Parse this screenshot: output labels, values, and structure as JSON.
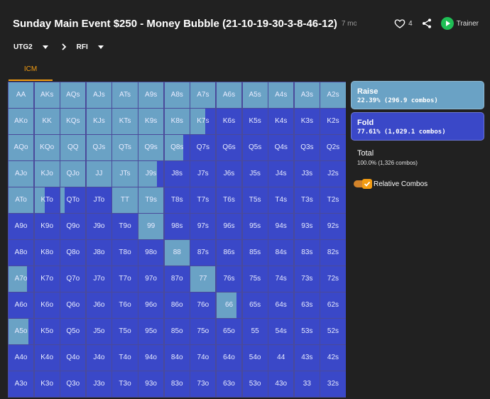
{
  "header": {
    "title": "Sunday Main Event $250 - Money Bubble (21-10-19-30-3-8-46-12)",
    "subtitle": "7 months",
    "likes": "4",
    "trainer_label": "Trainer",
    "icons": {
      "title": "bank-icon",
      "like": "heart-icon",
      "share": "share-icon",
      "trainer": "play-icon"
    },
    "colors": {
      "trainer": "#1fbf55",
      "accent": "#f39c12"
    }
  },
  "selectors": {
    "position": "UTG2",
    "action": "RFI"
  },
  "tabs": [
    {
      "label": "ICM",
      "active": true
    }
  ],
  "colors": {
    "raise": "#6aa2c5",
    "fold": "#3a48c8"
  },
  "grid": {
    "rows": [
      [
        "AA",
        "AKs",
        "AQs",
        "AJs",
        "ATs",
        "A9s",
        "A8s",
        "A7s",
        "A6s",
        "A5s",
        "A4s",
        "A3s",
        "A2s"
      ],
      [
        "AKo",
        "KK",
        "KQs",
        "KJs",
        "KTs",
        "K9s",
        "K8s",
        "K7s",
        "K6s",
        "K5s",
        "K4s",
        "K3s",
        "K2s"
      ],
      [
        "AQo",
        "KQo",
        "QQ",
        "QJs",
        "QTs",
        "Q9s",
        "Q8s",
        "Q7s",
        "Q6s",
        "Q5s",
        "Q4s",
        "Q3s",
        "Q2s"
      ],
      [
        "AJo",
        "KJo",
        "QJo",
        "JJ",
        "JTs",
        "J9s",
        "J8s",
        "J7s",
        "J6s",
        "J5s",
        "J4s",
        "J3s",
        "J2s"
      ],
      [
        "ATo",
        "KTo",
        "QTo",
        "JTo",
        "TT",
        "T9s",
        "T8s",
        "T7s",
        "T6s",
        "T5s",
        "T4s",
        "T3s",
        "T2s"
      ],
      [
        "A9o",
        "K9o",
        "Q9o",
        "J9o",
        "T9o",
        "99",
        "98s",
        "97s",
        "96s",
        "95s",
        "94s",
        "93s",
        "92s"
      ],
      [
        "A8o",
        "K8o",
        "Q8o",
        "J8o",
        "T8o",
        "98o",
        "88",
        "87s",
        "86s",
        "85s",
        "84s",
        "83s",
        "82s"
      ],
      [
        "A7o",
        "K7o",
        "Q7o",
        "J7o",
        "T7o",
        "97o",
        "87o",
        "77",
        "76s",
        "75s",
        "74s",
        "73s",
        "72s"
      ],
      [
        "A6o",
        "K6o",
        "Q6o",
        "J6o",
        "T6o",
        "96o",
        "86o",
        "76o",
        "66",
        "65s",
        "64s",
        "63s",
        "62s"
      ],
      [
        "A5o",
        "K5o",
        "Q5o",
        "J5o",
        "T5o",
        "95o",
        "85o",
        "75o",
        "65o",
        "55",
        "54s",
        "53s",
        "52s"
      ],
      [
        "A4o",
        "K4o",
        "Q4o",
        "J4o",
        "T4o",
        "94o",
        "84o",
        "74o",
        "64o",
        "54o",
        "44",
        "43s",
        "42s"
      ],
      [
        "A3o",
        "K3o",
        "Q3o",
        "J3o",
        "T3o",
        "93o",
        "83o",
        "73o",
        "63o",
        "53o",
        "43o",
        "33",
        "32s"
      ]
    ],
    "raise_fraction": [
      [
        1,
        1,
        1,
        1,
        1,
        1,
        1,
        1,
        1,
        1,
        1,
        1,
        1
      ],
      [
        1,
        1,
        1,
        1,
        1,
        1,
        1,
        0.6,
        0,
        0,
        0,
        0,
        0
      ],
      [
        1,
        1,
        1,
        1,
        1,
        1,
        0.75,
        0,
        0,
        0,
        0,
        0,
        0
      ],
      [
        1,
        1,
        1,
        1,
        1,
        0.75,
        0,
        0,
        0,
        0,
        0,
        0,
        0
      ],
      [
        1,
        0.4,
        0.15,
        0,
        1,
        1,
        0,
        0,
        0,
        0,
        0,
        0,
        0
      ],
      [
        0,
        0,
        0,
        0,
        0,
        1,
        0,
        0,
        0,
        0,
        0,
        0,
        0
      ],
      [
        0,
        0,
        0,
        0,
        0,
        0,
        1,
        0,
        0,
        0,
        0,
        0,
        0
      ],
      [
        0.75,
        0,
        0,
        0,
        0,
        0,
        0,
        1,
        0,
        0,
        0,
        0,
        0
      ],
      [
        0,
        0,
        0,
        0,
        0,
        0,
        0,
        0,
        0.8,
        0,
        0,
        0,
        0
      ],
      [
        0.8,
        0,
        0,
        0,
        0,
        0,
        0,
        0,
        0,
        0,
        0,
        0,
        0
      ],
      [
        0,
        0,
        0,
        0,
        0,
        0,
        0,
        0,
        0,
        0,
        0,
        0,
        0
      ],
      [
        0,
        0,
        0,
        0,
        0,
        0,
        0,
        0,
        0,
        0,
        0,
        0,
        0
      ]
    ]
  },
  "panel": {
    "raise": {
      "label": "Raise",
      "stats": "22.39% (296.9 combos)"
    },
    "fold": {
      "label": "Fold",
      "stats": "77.61% (1,029.1 combos)"
    },
    "total": {
      "label": "Total",
      "stats": "100.0% (1,326 combos)"
    },
    "relative_combos": {
      "label": "Relative Combos",
      "checked": true
    }
  }
}
